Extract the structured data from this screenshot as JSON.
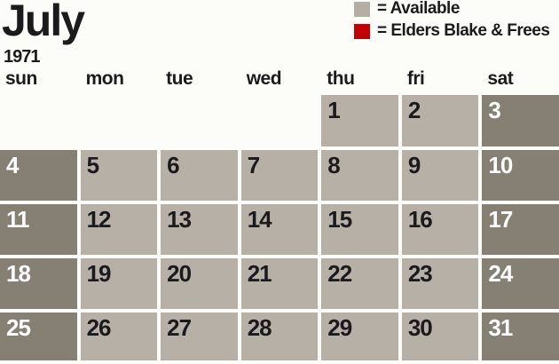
{
  "calendar": {
    "month": "July",
    "year": "1971",
    "weekdays": [
      "sun",
      "mon",
      "tue",
      "wed",
      "thu",
      "fri",
      "sat"
    ],
    "weeks": [
      [
        "",
        "",
        "",
        "",
        "1",
        "2",
        "3"
      ],
      [
        "4",
        "5",
        "6",
        "7",
        "8",
        "9",
        "10"
      ],
      [
        "11",
        "12",
        "13",
        "14",
        "15",
        "16",
        "17"
      ],
      [
        "18",
        "19",
        "20",
        "21",
        "22",
        "23",
        "24"
      ],
      [
        "25",
        "26",
        "27",
        "28",
        "29",
        "30",
        "31"
      ]
    ]
  },
  "legend": {
    "items": [
      {
        "label": "= Available",
        "swatch": "gray"
      },
      {
        "label": "= Elders Blake & Frees",
        "swatch": "red"
      }
    ]
  },
  "colors": {
    "background": "#fcfdf9",
    "ink": "#1b1b1e",
    "weekend_ink": "#ffffff",
    "weekday_cell": "#b6b0a6",
    "weekend_cell": "#867f73",
    "legend_gray": "#b4aea5",
    "legend_red": "#c00406"
  }
}
